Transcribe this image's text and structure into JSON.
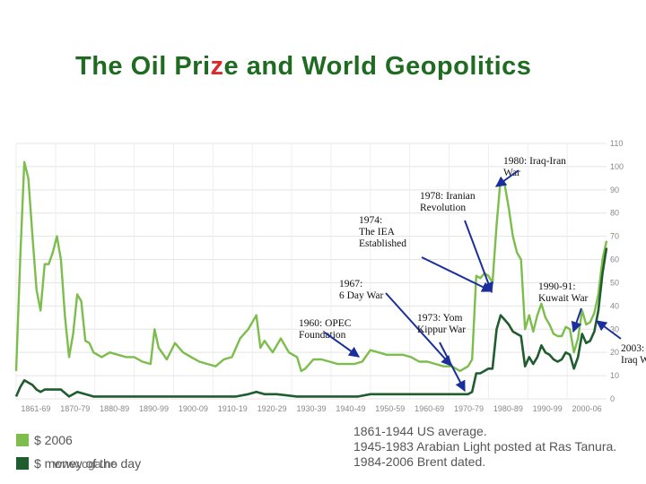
{
  "slide": {
    "title_parts": [
      "The Oil Pri",
      "z",
      "e and World Geopolitics"
    ],
    "watermark": "www.oga.no"
  },
  "chart_data": {
    "type": "line",
    "ylim": [
      0,
      110
    ],
    "yticks": [
      0,
      10,
      20,
      30,
      40,
      50,
      60,
      70,
      80,
      90,
      100,
      110
    ],
    "xlim": [
      1861,
      2006
    ],
    "x_tick_labels": [
      "1861-69",
      "1870-79",
      "1880-89",
      "1890-99",
      "1900-09",
      "1910-19",
      "1920-29",
      "1930-39",
      "1940-49",
      "1950-59",
      "1960-69",
      "1970-79",
      "1980-89",
      "1990-99",
      "2000-06"
    ],
    "grid": true,
    "legend": [
      {
        "label": "$ 2006",
        "color": "#7cbd4b"
      },
      {
        "label": "$ money of the day",
        "color": "#1f5c2e"
      }
    ],
    "source_notes": [
      "1861-1944 US average.",
      "1945-1983 Arabian Light posted at Ras Tanura.",
      "1984-2006 Brent dated."
    ],
    "series": [
      {
        "color": "#7cbd4b",
        "x": [
          1861,
          1862,
          1863,
          1864,
          1865,
          1866,
          1867,
          1868,
          1869,
          1870,
          1871,
          1872,
          1873,
          1874,
          1875,
          1876,
          1877,
          1878,
          1879,
          1880,
          1882,
          1884,
          1886,
          1888,
          1890,
          1892,
          1894,
          1895,
          1896,
          1898,
          1900,
          1902,
          1904,
          1906,
          1908,
          1910,
          1912,
          1914,
          1916,
          1918,
          1920,
          1921,
          1922,
          1924,
          1926,
          1928,
          1930,
          1931,
          1932,
          1934,
          1936,
          1938,
          1940,
          1942,
          1944,
          1946,
          1948,
          1950,
          1952,
          1954,
          1956,
          1958,
          1960,
          1962,
          1964,
          1966,
          1968,
          1970,
          1971,
          1972,
          1973,
          1974,
          1975,
          1976,
          1977,
          1978,
          1979,
          1980,
          1981,
          1982,
          1983,
          1984,
          1985,
          1986,
          1987,
          1988,
          1989,
          1990,
          1991,
          1992,
          1993,
          1994,
          1995,
          1996,
          1997,
          1998,
          1999,
          2000,
          2001,
          2002,
          2003,
          2004,
          2005,
          2006
        ],
        "y": [
          12,
          60,
          102,
          95,
          70,
          47,
          38,
          58,
          58,
          63,
          70,
          60,
          35,
          18,
          28,
          45,
          42,
          25,
          24,
          20,
          18,
          20,
          19,
          18,
          18,
          16,
          15,
          30,
          22,
          17,
          24,
          20,
          18,
          16,
          15,
          14,
          17,
          18,
          26,
          30,
          36,
          22,
          25,
          20,
          26,
          20,
          18,
          12,
          13,
          17,
          17,
          16,
          15,
          15,
          15,
          16,
          21,
          20,
          19,
          19,
          19,
          18,
          16,
          16,
          15,
          14,
          14,
          12,
          13,
          14,
          17,
          53,
          52,
          54,
          53,
          50,
          75,
          95,
          92,
          82,
          70,
          63,
          60,
          30,
          36,
          29,
          36,
          41,
          35,
          32,
          28,
          27,
          27,
          31,
          30,
          20,
          26,
          38,
          32,
          33,
          37,
          45,
          60,
          68
        ]
      },
      {
        "color": "#1f5c2e",
        "x": [
          1861,
          1862,
          1863,
          1864,
          1865,
          1866,
          1867,
          1868,
          1869,
          1870,
          1872,
          1874,
          1876,
          1878,
          1880,
          1885,
          1890,
          1895,
          1900,
          1905,
          1910,
          1915,
          1918,
          1920,
          1922,
          1925,
          1930,
          1931,
          1935,
          1940,
          1945,
          1948,
          1950,
          1955,
          1960,
          1965,
          1970,
          1971,
          1972,
          1973,
          1974,
          1975,
          1976,
          1977,
          1978,
          1979,
          1980,
          1981,
          1982,
          1983,
          1984,
          1985,
          1986,
          1987,
          1988,
          1989,
          1990,
          1991,
          1992,
          1993,
          1994,
          1995,
          1996,
          1997,
          1998,
          1999,
          2000,
          2001,
          2002,
          2003,
          2004,
          2005,
          2006
        ],
        "y": [
          1,
          5,
          8,
          7,
          6,
          4,
          3,
          4,
          4,
          4,
          4,
          1,
          3,
          2,
          1,
          1,
          1,
          1,
          1,
          1,
          1,
          1,
          2,
          3,
          2,
          2,
          1,
          1,
          1,
          1,
          1,
          2,
          2,
          2,
          2,
          2,
          2,
          2,
          2,
          3,
          11,
          11,
          12,
          13,
          13,
          30,
          36,
          34,
          32,
          29,
          28,
          27,
          14,
          18,
          15,
          18,
          23,
          20,
          19,
          17,
          16,
          17,
          20,
          19,
          13,
          18,
          28,
          24,
          25,
          29,
          38,
          54,
          65
        ]
      }
    ],
    "annotations": [
      {
        "lines": [
          "1980: Iraq-Iran",
          "War"
        ]
      },
      {
        "lines": [
          "1978: Iranian",
          "Revolution"
        ]
      },
      {
        "lines": [
          "1974:",
          "The IEA",
          "Established"
        ]
      },
      {
        "lines": [
          "1967:",
          "6 Day War"
        ]
      },
      {
        "lines": [
          "1990-91:",
          "Kuwait War"
        ]
      },
      {
        "lines": [
          "1960: OPEC",
          "Foundation"
        ]
      },
      {
        "lines": [
          "1973: Yom",
          "Kippur War"
        ]
      },
      {
        "lines": [
          "2003:",
          "Iraq War"
        ]
      }
    ]
  }
}
